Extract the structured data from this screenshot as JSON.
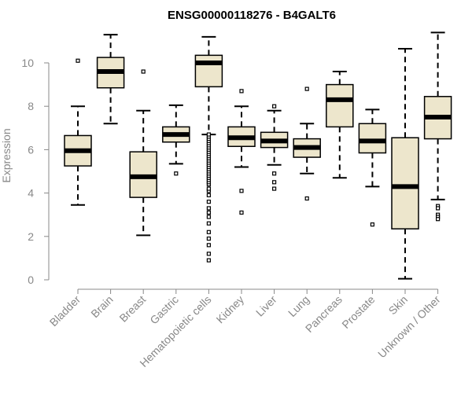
{
  "colors": {
    "box_fill": "#EDE6CC",
    "box_stroke": "#000000",
    "axis": "#888888",
    "text": "#888888",
    "title": "#000000"
  },
  "chart_data": {
    "type": "box",
    "title": "ENSG00000118276 - B4GALT6",
    "xlabel": "",
    "ylabel": "Expression",
    "ylim": [
      0,
      11.5
    ],
    "yticks": [
      0,
      2,
      4,
      6,
      8,
      10
    ],
    "categories": [
      "Bladder",
      "Brain",
      "Breast",
      "Gastric",
      "Hematopoietic cells",
      "Kidney",
      "Liver",
      "Lung",
      "Pancreas",
      "Prostate",
      "Skin",
      "Unknown / Other"
    ],
    "boxes": [
      {
        "category": "Bladder",
        "whisker_low": 3.45,
        "q1": 5.25,
        "median": 5.95,
        "q3": 6.65,
        "whisker_high": 8.0,
        "outliers": [
          10.1
        ]
      },
      {
        "category": "Brain",
        "whisker_low": 7.2,
        "q1": 8.85,
        "median": 9.6,
        "q3": 10.25,
        "whisker_high": 11.3,
        "outliers": []
      },
      {
        "category": "Breast",
        "whisker_low": 2.05,
        "q1": 3.8,
        "median": 4.75,
        "q3": 5.9,
        "whisker_high": 7.8,
        "outliers": [
          9.6
        ]
      },
      {
        "category": "Gastric",
        "whisker_low": 5.35,
        "q1": 6.35,
        "median": 6.7,
        "q3": 7.05,
        "whisker_high": 8.05,
        "outliers": [
          4.9
        ]
      },
      {
        "category": "Hematopoietic cells",
        "whisker_low": 6.7,
        "q1": 8.9,
        "median": 10.0,
        "q3": 10.35,
        "whisker_high": 11.2,
        "outliers": [
          0.9,
          1.2,
          1.6,
          1.9,
          2.2,
          2.6,
          2.9,
          3.1,
          3.3,
          3.6,
          3.9,
          4.1,
          4.2,
          4.4,
          4.5,
          4.6,
          4.7,
          4.8,
          4.9,
          5.0,
          5.1,
          5.2,
          5.3,
          5.4,
          5.5,
          5.6,
          5.7,
          5.8,
          5.9,
          6.0,
          6.1,
          6.2,
          6.3,
          6.4,
          6.5,
          6.6,
          6.7
        ]
      },
      {
        "category": "Kidney",
        "whisker_low": 5.2,
        "q1": 6.15,
        "median": 6.55,
        "q3": 7.05,
        "whisker_high": 8.0,
        "outliers": [
          8.7,
          4.1,
          3.1
        ]
      },
      {
        "category": "Liver",
        "whisker_low": 5.3,
        "q1": 6.1,
        "median": 6.4,
        "q3": 6.8,
        "whisker_high": 7.8,
        "outliers": [
          8.0,
          4.9,
          4.5,
          4.2
        ]
      },
      {
        "category": "Lung",
        "whisker_low": 4.9,
        "q1": 5.65,
        "median": 6.1,
        "q3": 6.5,
        "whisker_high": 7.2,
        "outliers": [
          8.8,
          3.75
        ]
      },
      {
        "category": "Pancreas",
        "whisker_low": 4.7,
        "q1": 7.05,
        "median": 8.3,
        "q3": 9.0,
        "whisker_high": 9.6,
        "outliers": []
      },
      {
        "category": "Prostate",
        "whisker_low": 4.3,
        "q1": 5.85,
        "median": 6.4,
        "q3": 7.2,
        "whisker_high": 7.85,
        "outliers": [
          2.55
        ]
      },
      {
        "category": "Skin",
        "whisker_low": 0.05,
        "q1": 2.35,
        "median": 4.3,
        "q3": 6.55,
        "whisker_high": 10.65,
        "outliers": []
      },
      {
        "category": "Unknown / Other",
        "whisker_low": 3.7,
        "q1": 6.5,
        "median": 7.5,
        "q3": 8.45,
        "whisker_high": 11.4,
        "outliers": [
          3.4,
          3.3,
          3.0,
          2.9,
          2.8
        ]
      }
    ]
  }
}
